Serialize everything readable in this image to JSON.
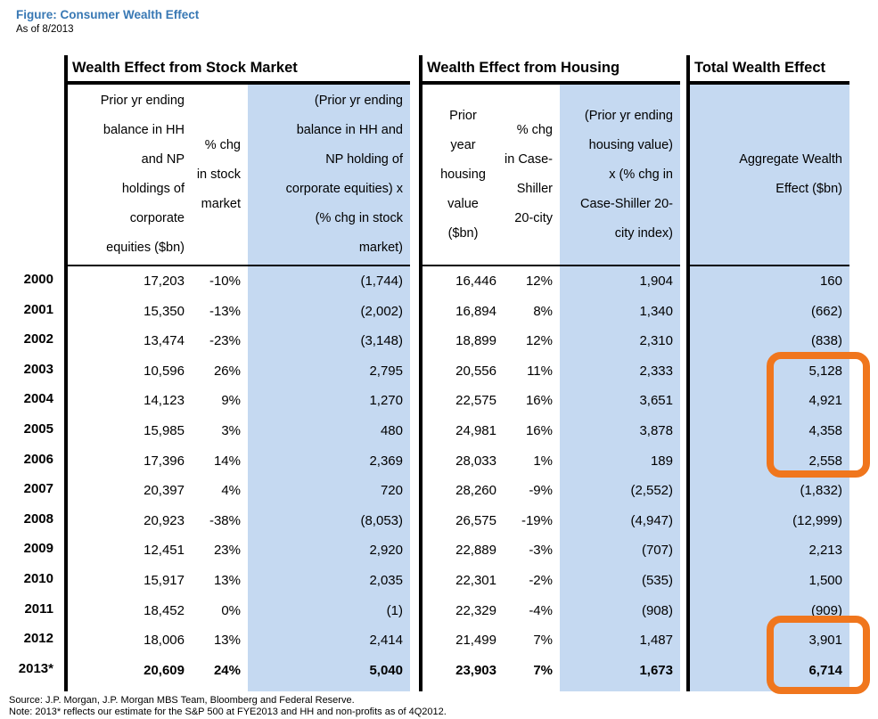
{
  "colors": {
    "title_blue": "#3878b4",
    "column_fill_blue": "#c5d9f1",
    "highlight_orange": "#f0761d"
  },
  "figure": {
    "title": "Figure: Consumer Wealth Effect",
    "as_of": "As of 8/2013"
  },
  "sections": [
    {
      "title": "Wealth Effect from Stock Market"
    },
    {
      "title": "Wealth Effect from Housing"
    },
    {
      "title": "Total Wealth Effect"
    }
  ],
  "headers": {
    "stock_balance": "Prior yr ending\nbalance in HH\nand NP\nholdings of\ncorporate\nequities ($bn)",
    "stock_chg": "% chg\nin stock\nmarket",
    "stock_effect": "(Prior yr ending\nbalance in HH and\nNP holding of\ncorporate equities) x\n(% chg in stock\nmarket)",
    "housing_value": "Prior\nyear\nhousing\nvalue\n($bn)",
    "housing_chg": "% chg\nin Case-\nShiller\n20-city",
    "housing_effect": "(Prior yr ending\nhousing value)\nx (% chg in\nCase-Shiller 20-\ncity index)",
    "total": "Aggregate Wealth\nEffect ($bn)"
  },
  "rows": [
    {
      "year": "2000",
      "stock_balance": "17,203",
      "stock_chg": "-10%",
      "stock_effect": "(1,744)",
      "housing_value": "16,446",
      "housing_chg": "12%",
      "housing_effect": "1,904",
      "total": "160",
      "bold": false
    },
    {
      "year": "2001",
      "stock_balance": "15,350",
      "stock_chg": "-13%",
      "stock_effect": "(2,002)",
      "housing_value": "16,894",
      "housing_chg": "8%",
      "housing_effect": "1,340",
      "total": "(662)",
      "bold": false
    },
    {
      "year": "2002",
      "stock_balance": "13,474",
      "stock_chg": "-23%",
      "stock_effect": "(3,148)",
      "housing_value": "18,899",
      "housing_chg": "12%",
      "housing_effect": "2,310",
      "total": "(838)",
      "bold": false
    },
    {
      "year": "2003",
      "stock_balance": "10,596",
      "stock_chg": "26%",
      "stock_effect": "2,795",
      "housing_value": "20,556",
      "housing_chg": "11%",
      "housing_effect": "2,333",
      "total": "5,128",
      "bold": false
    },
    {
      "year": "2004",
      "stock_balance": "14,123",
      "stock_chg": "9%",
      "stock_effect": "1,270",
      "housing_value": "22,575",
      "housing_chg": "16%",
      "housing_effect": "3,651",
      "total": "4,921",
      "bold": false
    },
    {
      "year": "2005",
      "stock_balance": "15,985",
      "stock_chg": "3%",
      "stock_effect": "480",
      "housing_value": "24,981",
      "housing_chg": "16%",
      "housing_effect": "3,878",
      "total": "4,358",
      "bold": false
    },
    {
      "year": "2006",
      "stock_balance": "17,396",
      "stock_chg": "14%",
      "stock_effect": "2,369",
      "housing_value": "28,033",
      "housing_chg": "1%",
      "housing_effect": "189",
      "total": "2,558",
      "bold": false
    },
    {
      "year": "2007",
      "stock_balance": "20,397",
      "stock_chg": "4%",
      "stock_effect": "720",
      "housing_value": "28,260",
      "housing_chg": "-9%",
      "housing_effect": "(2,552)",
      "total": "(1,832)",
      "bold": false
    },
    {
      "year": "2008",
      "stock_balance": "20,923",
      "stock_chg": "-38%",
      "stock_effect": "(8,053)",
      "housing_value": "26,575",
      "housing_chg": "-19%",
      "housing_effect": "(4,947)",
      "total": "(12,999)",
      "bold": false
    },
    {
      "year": "2009",
      "stock_balance": "12,451",
      "stock_chg": "23%",
      "stock_effect": "2,920",
      "housing_value": "22,889",
      "housing_chg": "-3%",
      "housing_effect": "(707)",
      "total": "2,213",
      "bold": false
    },
    {
      "year": "2010",
      "stock_balance": "15,917",
      "stock_chg": "13%",
      "stock_effect": "2,035",
      "housing_value": "22,301",
      "housing_chg": "-2%",
      "housing_effect": "(535)",
      "total": "1,500",
      "bold": false
    },
    {
      "year": "2011",
      "stock_balance": "18,452",
      "stock_chg": "0%",
      "stock_effect": "(1)",
      "housing_value": "22,329",
      "housing_chg": "-4%",
      "housing_effect": "(908)",
      "total": "(909)",
      "bold": false
    },
    {
      "year": "2012",
      "stock_balance": "18,006",
      "stock_chg": "13%",
      "stock_effect": "2,414",
      "housing_value": "21,499",
      "housing_chg": "7%",
      "housing_effect": "1,487",
      "total": "3,901",
      "bold": false
    },
    {
      "year": "2013*",
      "stock_balance": "20,609",
      "stock_chg": "24%",
      "stock_effect": "5,040",
      "housing_value": "23,903",
      "housing_chg": "7%",
      "housing_effect": "1,673",
      "total": "6,714",
      "bold": true
    }
  ],
  "highlights": [
    {
      "region": "aggregate-wealth-effect rows 2003-2006"
    },
    {
      "region": "aggregate-wealth-effect rows 2012-2013*"
    }
  ],
  "footer": {
    "source": "Source: J.P. Morgan, J.P. Morgan MBS Team, Bloomberg and Federal Reserve.",
    "note": "Note: 2013* reflects our estimate for the S&P 500 at FYE2013 and HH and non-profits as of 4Q2012."
  }
}
